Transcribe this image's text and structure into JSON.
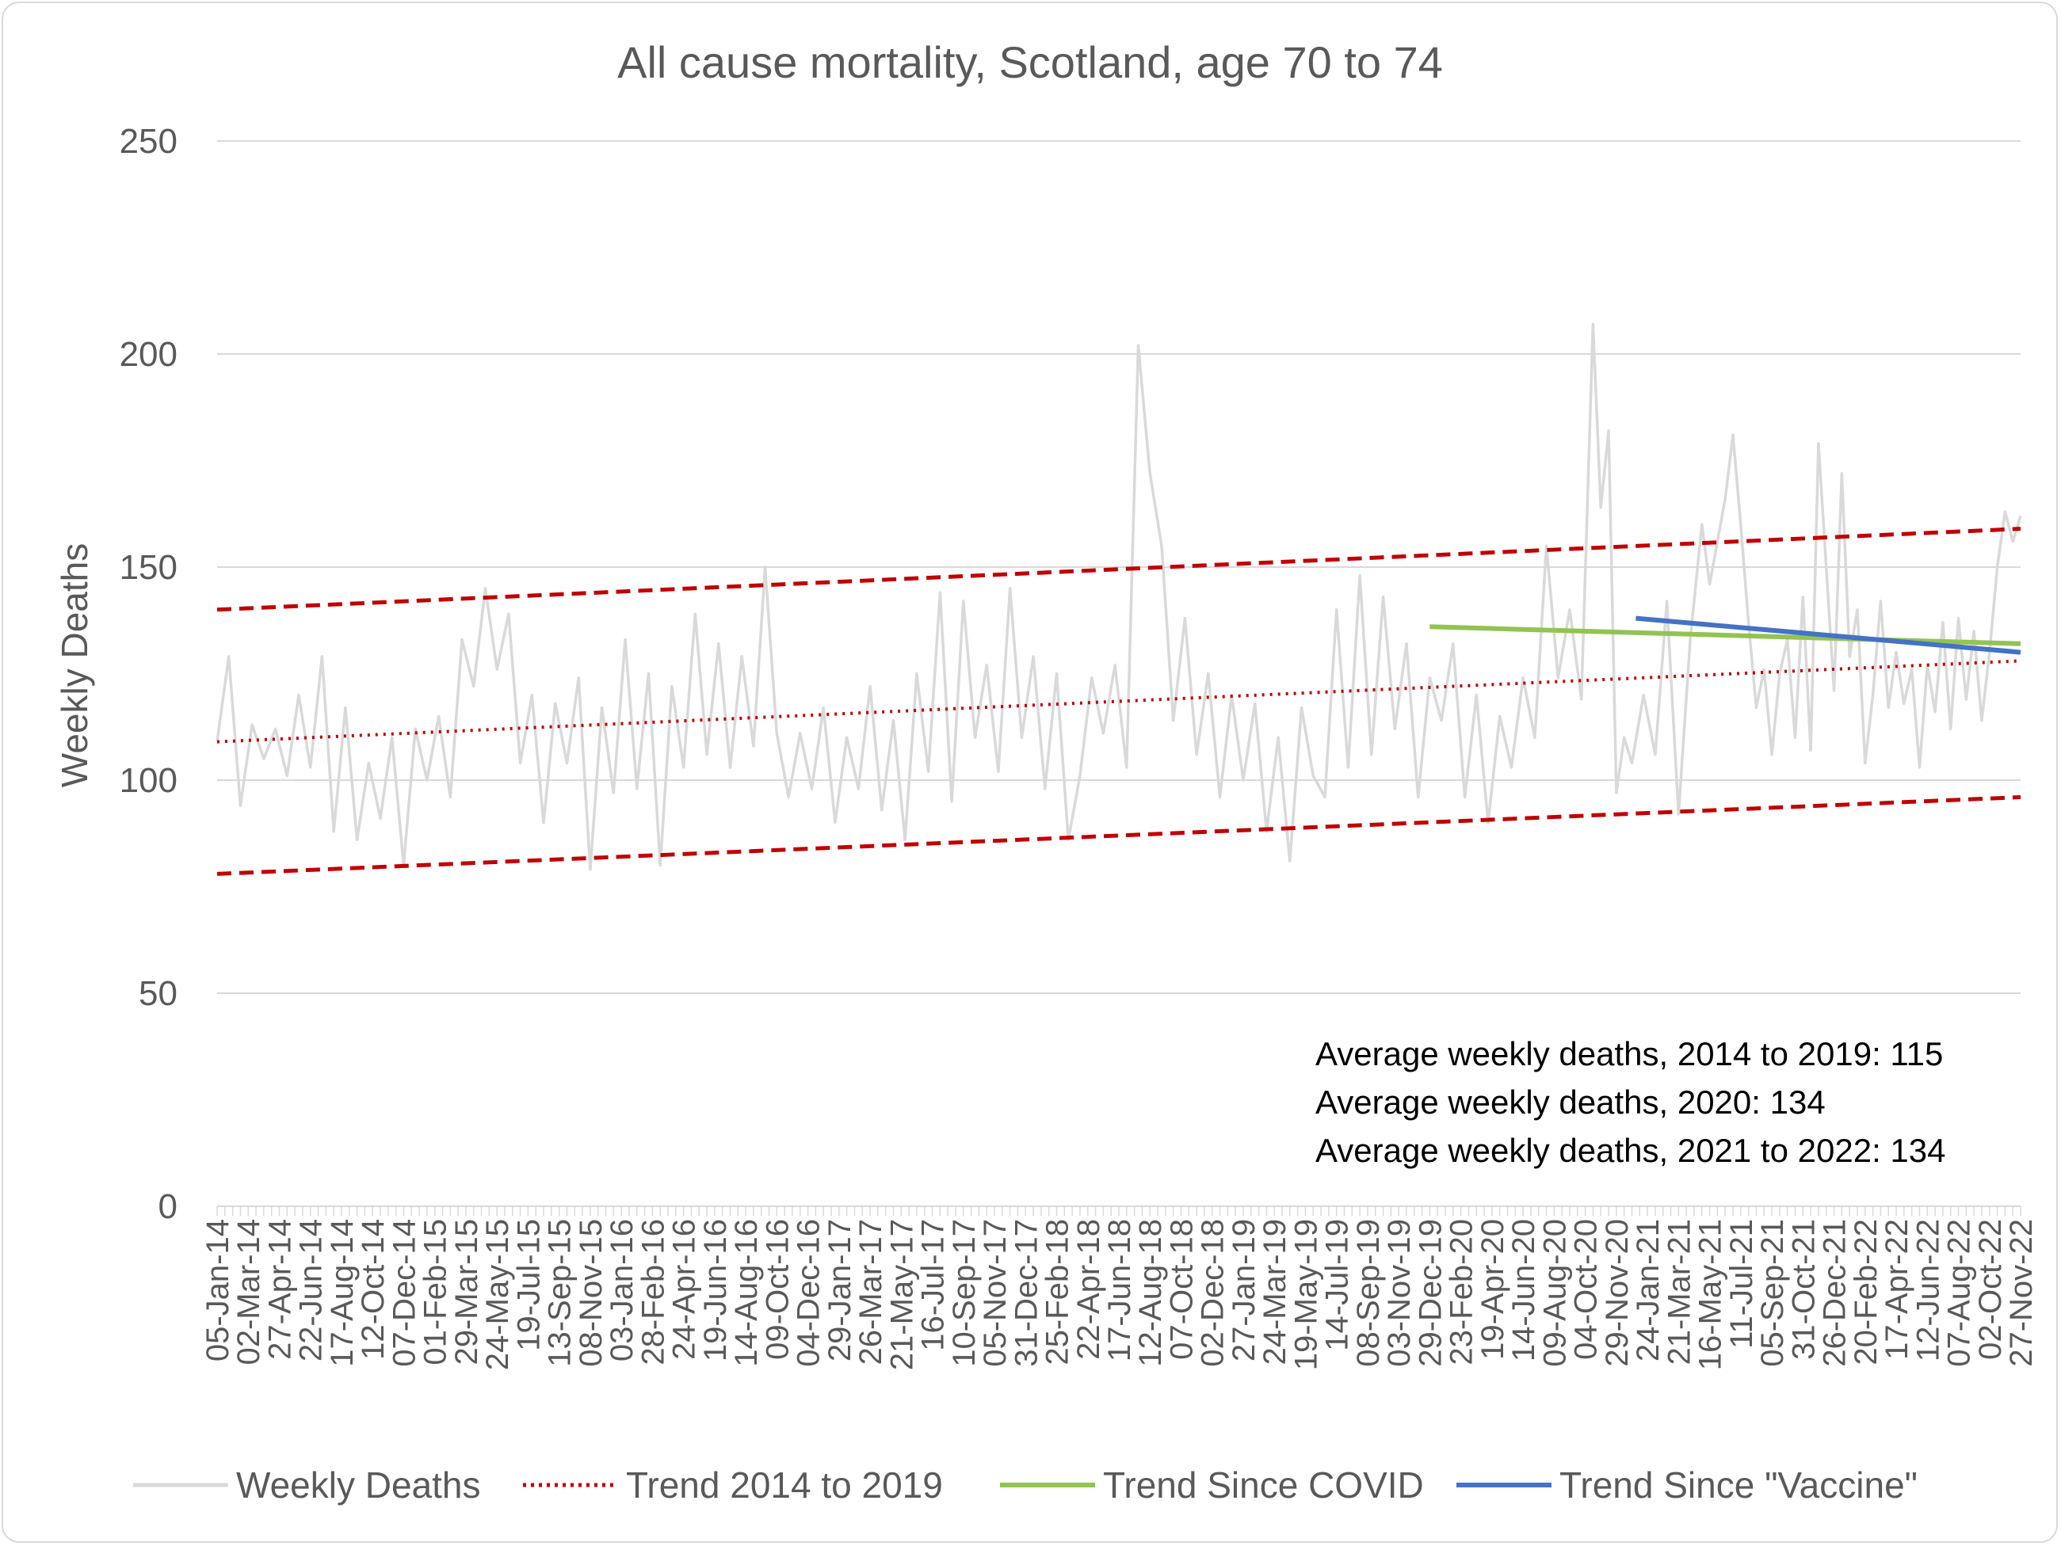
{
  "chart_data": {
    "type": "line",
    "title": "All cause mortality, Scotland, age 70 to 74",
    "ylabel": "Weekly Deaths",
    "xlabel": "",
    "ylim": [
      0,
      250
    ],
    "yticks": [
      0,
      50,
      100,
      150,
      200,
      250
    ],
    "grid": true,
    "legend_position": "bottom",
    "x_start": "05-Jan-14",
    "x_end": "27-Nov-22",
    "x_tick_labels": [
      "05-Jan-14",
      "02-Mar-14",
      "27-Apr-14",
      "22-Jun-14",
      "17-Aug-14",
      "12-Oct-14",
      "07-Dec-14",
      "01-Feb-15",
      "29-Mar-15",
      "24-May-15",
      "19-Jul-15",
      "13-Sep-15",
      "08-Nov-15",
      "03-Jan-16",
      "28-Feb-16",
      "24-Apr-16",
      "19-Jun-16",
      "14-Aug-16",
      "09-Oct-16",
      "04-Dec-16",
      "29-Jan-17",
      "26-Mar-17",
      "21-May-17",
      "16-Jul-17",
      "10-Sep-17",
      "05-Nov-17",
      "31-Dec-17",
      "25-Feb-18",
      "22-Apr-18",
      "17-Jun-18",
      "12-Aug-18",
      "07-Oct-18",
      "02-Dec-18",
      "27-Jan-19",
      "24-Mar-19",
      "19-May-19",
      "14-Jul-19",
      "08-Sep-19",
      "03-Nov-19",
      "29-Dec-19",
      "23-Feb-20",
      "19-Apr-20",
      "14-Jun-20",
      "09-Aug-20",
      "04-Oct-20",
      "29-Nov-20",
      "24-Jan-21",
      "21-Mar-21",
      "16-May-21",
      "11-Jul-21",
      "05-Sep-21",
      "31-Oct-21",
      "26-Dec-21",
      "20-Feb-22",
      "17-Apr-22",
      "12-Jun-22",
      "07-Aug-22",
      "02-Oct-22",
      "27-Nov-22"
    ],
    "series": [
      {
        "name": "Weekly Deaths",
        "color": "#d9d9d9",
        "style": "solid",
        "points": [
          [
            "05-Jan-14",
            109
          ],
          [
            "26-Jan-14",
            129
          ],
          [
            "16-Feb-14",
            94
          ],
          [
            "09-Mar-14",
            113
          ],
          [
            "30-Mar-14",
            105
          ],
          [
            "20-Apr-14",
            112
          ],
          [
            "11-May-14",
            101
          ],
          [
            "01-Jun-14",
            120
          ],
          [
            "22-Jun-14",
            103
          ],
          [
            "13-Jul-14",
            129
          ],
          [
            "03-Aug-14",
            88
          ],
          [
            "24-Aug-14",
            117
          ],
          [
            "14-Sep-14",
            86
          ],
          [
            "05-Oct-14",
            104
          ],
          [
            "26-Oct-14",
            91
          ],
          [
            "16-Nov-14",
            110
          ],
          [
            "07-Dec-14",
            80
          ],
          [
            "28-Dec-14",
            112
          ],
          [
            "18-Jan-15",
            100
          ],
          [
            "08-Feb-15",
            115
          ],
          [
            "01-Mar-15",
            96
          ],
          [
            "22-Mar-15",
            133
          ],
          [
            "12-Apr-15",
            122
          ],
          [
            "03-May-15",
            145
          ],
          [
            "24-May-15",
            126
          ],
          [
            "14-Jun-15",
            139
          ],
          [
            "05-Jul-15",
            104
          ],
          [
            "26-Jul-15",
            120
          ],
          [
            "16-Aug-15",
            90
          ],
          [
            "06-Sep-15",
            118
          ],
          [
            "27-Sep-15",
            104
          ],
          [
            "18-Oct-15",
            124
          ],
          [
            "08-Nov-15",
            79
          ],
          [
            "29-Nov-15",
            117
          ],
          [
            "20-Dec-15",
            97
          ],
          [
            "10-Jan-16",
            133
          ],
          [
            "31-Jan-16",
            98
          ],
          [
            "21-Feb-16",
            125
          ],
          [
            "13-Mar-16",
            80
          ],
          [
            "03-Apr-16",
            122
          ],
          [
            "24-Apr-16",
            103
          ],
          [
            "15-May-16",
            139
          ],
          [
            "05-Jun-16",
            106
          ],
          [
            "26-Jun-16",
            132
          ],
          [
            "17-Jul-16",
            103
          ],
          [
            "07-Aug-16",
            129
          ],
          [
            "28-Aug-16",
            108
          ],
          [
            "18-Sep-16",
            150
          ],
          [
            "09-Oct-16",
            111
          ],
          [
            "30-Oct-16",
            96
          ],
          [
            "20-Nov-16",
            111
          ],
          [
            "11-Dec-16",
            98
          ],
          [
            "01-Jan-17",
            117
          ],
          [
            "22-Jan-17",
            90
          ],
          [
            "12-Feb-17",
            110
          ],
          [
            "05-Mar-17",
            98
          ],
          [
            "26-Mar-17",
            122
          ],
          [
            "16-Apr-17",
            93
          ],
          [
            "07-May-17",
            114
          ],
          [
            "28-May-17",
            86
          ],
          [
            "18-Jun-17",
            125
          ],
          [
            "09-Jul-17",
            102
          ],
          [
            "30-Jul-17",
            144
          ],
          [
            "20-Aug-17",
            95
          ],
          [
            "10-Sep-17",
            142
          ],
          [
            "01-Oct-17",
            110
          ],
          [
            "22-Oct-17",
            127
          ],
          [
            "12-Nov-17",
            102
          ],
          [
            "03-Dec-17",
            145
          ],
          [
            "24-Dec-17",
            110
          ],
          [
            "14-Jan-18",
            129
          ],
          [
            "04-Feb-18",
            98
          ],
          [
            "25-Feb-18",
            125
          ],
          [
            "18-Mar-18",
            86
          ],
          [
            "08-Apr-18",
            101
          ],
          [
            "29-Apr-18",
            124
          ],
          [
            "20-May-18",
            111
          ],
          [
            "10-Jun-18",
            127
          ],
          [
            "01-Jul-18",
            103
          ],
          [
            "22-Jul-18",
            202
          ],
          [
            "12-Aug-18",
            172
          ],
          [
            "02-Sep-18",
            155
          ],
          [
            "23-Sep-18",
            114
          ],
          [
            "14-Oct-18",
            138
          ],
          [
            "04-Nov-18",
            106
          ],
          [
            "25-Nov-18",
            125
          ],
          [
            "16-Dec-18",
            96
          ],
          [
            "06-Jan-19",
            120
          ],
          [
            "27-Jan-19",
            100
          ],
          [
            "17-Feb-19",
            118
          ],
          [
            "10-Mar-19",
            88
          ],
          [
            "31-Mar-19",
            110
          ],
          [
            "21-Apr-19",
            81
          ],
          [
            "12-May-19",
            117
          ],
          [
            "02-Jun-19",
            101
          ],
          [
            "23-Jun-19",
            96
          ],
          [
            "14-Jul-19",
            140
          ],
          [
            "04-Aug-19",
            103
          ],
          [
            "25-Aug-19",
            148
          ],
          [
            "15-Sep-19",
            106
          ],
          [
            "06-Oct-19",
            143
          ],
          [
            "27-Oct-19",
            112
          ],
          [
            "17-Nov-19",
            132
          ],
          [
            "08-Dec-19",
            96
          ],
          [
            "29-Dec-19",
            124
          ],
          [
            "19-Jan-20",
            114
          ],
          [
            "09-Feb-20",
            132
          ],
          [
            "01-Mar-20",
            96
          ],
          [
            "22-Mar-20",
            120
          ],
          [
            "12-Apr-20",
            90
          ],
          [
            "03-May-20",
            115
          ],
          [
            "24-May-20",
            103
          ],
          [
            "14-Jun-20",
            124
          ],
          [
            "05-Jul-20",
            110
          ],
          [
            "26-Jul-20",
            155
          ],
          [
            "16-Aug-20",
            124
          ],
          [
            "06-Sep-20",
            140
          ],
          [
            "27-Sep-20",
            119
          ],
          [
            "18-Oct-20",
            207
          ],
          [
            "01-Nov-20",
            164
          ],
          [
            "15-Nov-20",
            182
          ],
          [
            "29-Nov-20",
            97
          ],
          [
            "13-Dec-20",
            110
          ],
          [
            "27-Dec-20",
            104
          ],
          [
            "17-Jan-21",
            120
          ],
          [
            "07-Feb-21",
            106
          ],
          [
            "28-Feb-21",
            142
          ],
          [
            "21-Mar-21",
            92
          ],
          [
            "11-Apr-21",
            133
          ],
          [
            "02-May-21",
            160
          ],
          [
            "16-May-21",
            146
          ],
          [
            "30-May-21",
            156
          ],
          [
            "13-Jun-21",
            166
          ],
          [
            "27-Jun-21",
            181
          ],
          [
            "11-Jul-21",
            160
          ],
          [
            "25-Jul-21",
            137
          ],
          [
            "08-Aug-21",
            117
          ],
          [
            "22-Aug-21",
            126
          ],
          [
            "05-Sep-21",
            106
          ],
          [
            "19-Sep-21",
            125
          ],
          [
            "03-Oct-21",
            133
          ],
          [
            "17-Oct-21",
            110
          ],
          [
            "31-Oct-21",
            143
          ],
          [
            "14-Nov-21",
            107
          ],
          [
            "28-Nov-21",
            179
          ],
          [
            "12-Dec-21",
            150
          ],
          [
            "26-Dec-21",
            121
          ],
          [
            "09-Jan-22",
            172
          ],
          [
            "23-Jan-22",
            129
          ],
          [
            "06-Feb-22",
            140
          ],
          [
            "20-Feb-22",
            104
          ],
          [
            "06-Mar-22",
            120
          ],
          [
            "20-Mar-22",
            142
          ],
          [
            "03-Apr-22",
            117
          ],
          [
            "17-Apr-22",
            130
          ],
          [
            "01-May-22",
            118
          ],
          [
            "15-May-22",
            126
          ],
          [
            "29-May-22",
            103
          ],
          [
            "12-Jun-22",
            127
          ],
          [
            "26-Jun-22",
            116
          ],
          [
            "10-Jul-22",
            137
          ],
          [
            "24-Jul-22",
            112
          ],
          [
            "07-Aug-22",
            138
          ],
          [
            "21-Aug-22",
            119
          ],
          [
            "04-Sep-22",
            135
          ],
          [
            "18-Sep-22",
            114
          ],
          [
            "02-Oct-22",
            130
          ],
          [
            "16-Oct-22",
            150
          ],
          [
            "30-Oct-22",
            163
          ],
          [
            "13-Nov-22",
            156
          ],
          [
            "27-Nov-22",
            162
          ]
        ]
      },
      {
        "name": "Trend 2014 to 2019",
        "color": "#c00000",
        "style": "dotted",
        "points": [
          [
            "05-Jan-14",
            109
          ],
          [
            "27-Nov-22",
            128
          ]
        ]
      },
      {
        "name": "Trend Since COVID",
        "color": "#92c353",
        "style": "solid",
        "points": [
          [
            "29-Dec-19",
            136
          ],
          [
            "27-Nov-22",
            132
          ]
        ]
      },
      {
        "name": "Trend Since \"Vaccine\"",
        "color": "#4472c4",
        "style": "solid",
        "points": [
          [
            "03-Jan-21",
            138
          ],
          [
            "27-Nov-22",
            130
          ]
        ]
      }
    ],
    "bands": [
      {
        "color": "#c00000",
        "style": "dashed",
        "points": [
          [
            "05-Jan-14",
            140
          ],
          [
            "27-Nov-22",
            159
          ]
        ]
      },
      {
        "color": "#c00000",
        "style": "dashed",
        "points": [
          [
            "05-Jan-14",
            78
          ],
          [
            "27-Nov-22",
            96
          ]
        ]
      }
    ],
    "annotations": [
      "Average weekly deaths, 2014 to 2019: 115",
      "Average weekly deaths, 2020: 134",
      "Average weekly deaths, 2021 to 2022: 134"
    ]
  }
}
